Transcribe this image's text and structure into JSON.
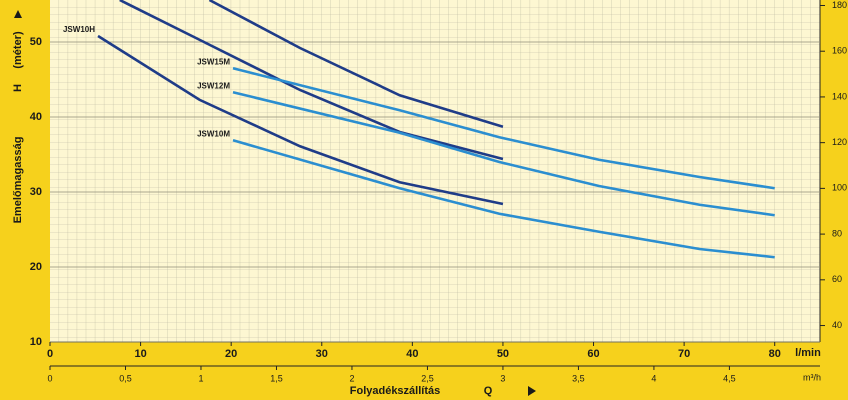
{
  "chart_data": {
    "type": "line",
    "y_label": "Emelőmagasság",
    "y_label_symbol": "H",
    "y_label_unit": "(méter)",
    "x_label": "Folyadékszállítás",
    "x_label_symbol": "Q",
    "x_unit": "l/min",
    "x2_unit": "m³/h",
    "xlim": [
      0,
      85
    ],
    "xticks": [
      0,
      10,
      20,
      30,
      40,
      50,
      60,
      70,
      80
    ],
    "x2lim": [
      0,
      5.1
    ],
    "x2ticks": [
      0,
      {
        "value": 0.5,
        "label": "0,5"
      },
      1,
      {
        "value": 1.5,
        "label": "1,5"
      },
      2,
      {
        "value": 2.5,
        "label": "2,5"
      },
      3,
      {
        "value": 3.5,
        "label": "3,5"
      },
      4,
      {
        "value": 4.5,
        "label": "4,5"
      }
    ],
    "ylim": [
      10,
      55.6
    ],
    "yticks": [
      10,
      20,
      30,
      40,
      50
    ],
    "y2lim": [
      32.8,
      182.4
    ],
    "y2ticks": [
      40,
      60,
      80,
      100,
      120,
      140,
      160,
      180
    ],
    "grid": true,
    "series": [
      {
        "name": "JSW10H",
        "color": "#1f3c88",
        "x": [
          5.3,
          16.5,
          27.6,
          38.6,
          50
        ],
        "values": [
          50.8,
          42.3,
          36.1,
          31.3,
          28.4
        ]
      },
      {
        "color": "#1f3c88",
        "x": [
          7.7,
          16.5,
          27.6,
          38.6,
          50
        ],
        "values": [
          55.6,
          50.3,
          43.6,
          38,
          34.4
        ]
      },
      {
        "color": "#1f3c88",
        "x": [
          17.6,
          27.6,
          38.6,
          50
        ],
        "values": [
          55.6,
          49.2,
          42.9,
          38.7
        ]
      },
      {
        "name": "JSW15M",
        "color": "#2b8ed0",
        "x": [
          20.2,
          38.6,
          49.6,
          60.6,
          71.7,
          80
        ],
        "values": [
          46.5,
          40.9,
          37.3,
          34.3,
          32,
          30.5
        ]
      },
      {
        "name": "JSW12M",
        "color": "#2b8ed0",
        "x": [
          20.2,
          38.6,
          49.6,
          60.6,
          71.7,
          80
        ],
        "values": [
          43.3,
          37.9,
          34,
          30.8,
          28.3,
          26.9
        ]
      },
      {
        "name": "JSW10M",
        "color": "#2b8ed0",
        "x": [
          20.2,
          38.6,
          49.6,
          60.6,
          71.7,
          80
        ],
        "values": [
          36.9,
          30.5,
          27.1,
          24.7,
          22.4,
          21.3
        ]
      }
    ]
  }
}
